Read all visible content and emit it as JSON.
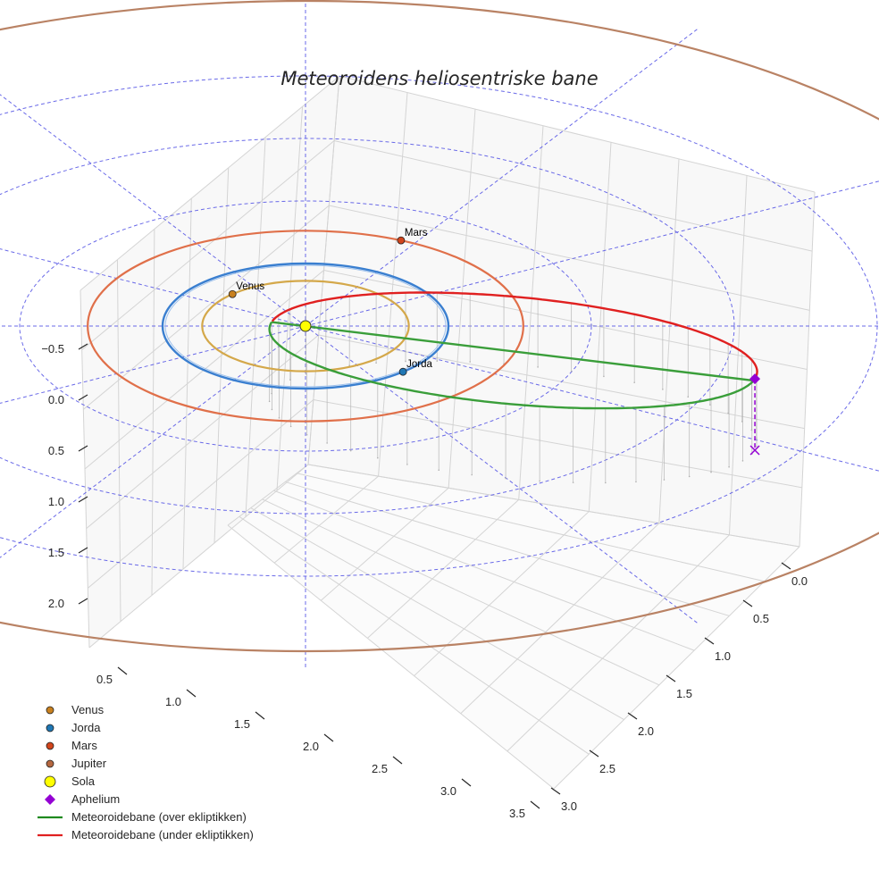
{
  "chart_data": {
    "type": "scatter",
    "projection": "3d",
    "title": "Meteoroidens heliosentriske bane",
    "grid": true,
    "legend_placement": "bottom-left",
    "axes": {
      "x": {
        "label": "",
        "ticks": [
          "0.5",
          "1.0",
          "1.5",
          "2.0",
          "2.5",
          "3.0",
          "3.5"
        ],
        "range": [
          0.2,
          3.7
        ]
      },
      "y": {
        "label": "",
        "ticks": [
          "0.0",
          "0.5",
          "1.0",
          "1.5",
          "2.0",
          "2.5",
          "3.0"
        ],
        "range": [
          -0.2,
          3.2
        ]
      },
      "z": {
        "label": "",
        "ticks": [
          "−0.5",
          "0.0",
          "0.5",
          "1.0",
          "1.5",
          "2.0"
        ],
        "range": [
          -0.7,
          2.2
        ]
      }
    },
    "sun": {
      "name": "Sola",
      "x": 0,
      "y": 0,
      "z": 0,
      "color": "#ffff00"
    },
    "planets": [
      {
        "name": "Venus",
        "label": "Venus",
        "a": 0.723,
        "phase_deg": 135,
        "color": "#c8801e",
        "orbit_color": "#d4a84a"
      },
      {
        "name": "Jorda",
        "label": "Jorda",
        "a": 1.0,
        "phase_deg": -47,
        "color": "#1f77b4",
        "orbit_color": "#3a7fd0"
      },
      {
        "name": "Mars",
        "label": "Mars",
        "a": 1.524,
        "phase_deg": 64,
        "color": "#d1451c",
        "orbit_color": "#e0704a"
      },
      {
        "name": "Jupiter",
        "label": "",
        "a": 5.2,
        "phase_deg": 0,
        "color": "#b5673f",
        "orbit_color": "#b98264"
      }
    ],
    "meteoroid_orbit": {
      "a": 1.75,
      "e": 0.86,
      "perihelion_deg": 165,
      "node_deg": 0,
      "inclination_deg": 2,
      "above_color": "#3a9e3a",
      "below_color": "#e02020",
      "above_label": "Meteoroidebane (over ekliptikken)",
      "below_label": "Meteoroidebane (under ekliptikken)"
    },
    "aphelium": {
      "name": "Aphelium",
      "color": "#9400d3"
    },
    "polar_grid": {
      "radii_au": [
        1,
        2,
        3,
        4
      ],
      "spoke_count": 12,
      "color": "#5a5ae6"
    },
    "legend": [
      {
        "label": "Venus",
        "marker": "circle",
        "color": "#c8801e"
      },
      {
        "label": "Jorda",
        "marker": "circle",
        "color": "#1f77b4"
      },
      {
        "label": "Mars",
        "marker": "circle",
        "color": "#d1451c"
      },
      {
        "label": "Jupiter",
        "marker": "circle",
        "color": "#b5673f"
      },
      {
        "label": "Sola",
        "marker": "big-circle",
        "color": "#ffff00"
      },
      {
        "label": "Aphelium",
        "marker": "diamond",
        "color": "#9400d3"
      },
      {
        "label": "Meteoroidebane (over ekliptikken)",
        "marker": "line",
        "color": "#1f8a1f"
      },
      {
        "label": "Meteoroidebane (under ekliptikken)",
        "marker": "line",
        "color": "#e02020"
      }
    ]
  }
}
